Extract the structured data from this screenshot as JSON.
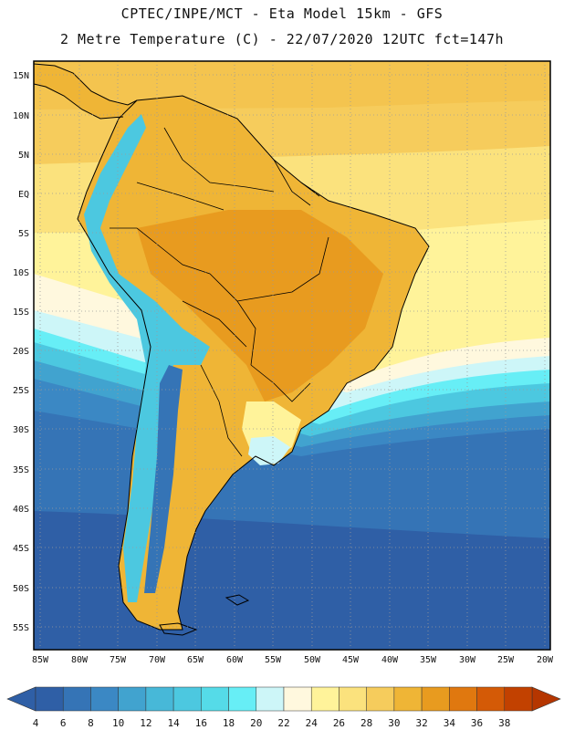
{
  "header": {
    "line1": "CPTEC/INPE/MCT -  Eta Model 15km - GFS",
    "line2": "2 Metre Temperature (C) - 22/07/2020 12UTC fct=147h"
  },
  "map": {
    "lat_labels": [
      "15N",
      "10N",
      "5N",
      "EQ",
      "5S",
      "10S",
      "15S",
      "20S",
      "25S",
      "30S",
      "35S",
      "40S",
      "45S",
      "50S",
      "55S"
    ],
    "lon_labels": [
      "85W",
      "80W",
      "75W",
      "70W",
      "65W",
      "60W",
      "55W",
      "50W",
      "45W",
      "40W",
      "35W",
      "30W",
      "25W",
      "20W"
    ]
  },
  "colorbar": {
    "ticks": [
      "4",
      "6",
      "8",
      "10",
      "12",
      "14",
      "16",
      "18",
      "20",
      "22",
      "24",
      "26",
      "28",
      "30",
      "32",
      "34",
      "36",
      "38"
    ],
    "colors": [
      "#2f5fa6",
      "#3574b6",
      "#3b88c4",
      "#41a3cf",
      "#47b8d8",
      "#4cc8e0",
      "#55dbe8",
      "#67eef6",
      "#cdf6f8",
      "#fff8de",
      "#fff39a",
      "#fbe27d",
      "#f6cc5c",
      "#efb536",
      "#e89b1f",
      "#e0780f",
      "#d45a06",
      "#c24100"
    ],
    "low_color": "#2f5fa6",
    "high_color": "#b53600"
  }
}
